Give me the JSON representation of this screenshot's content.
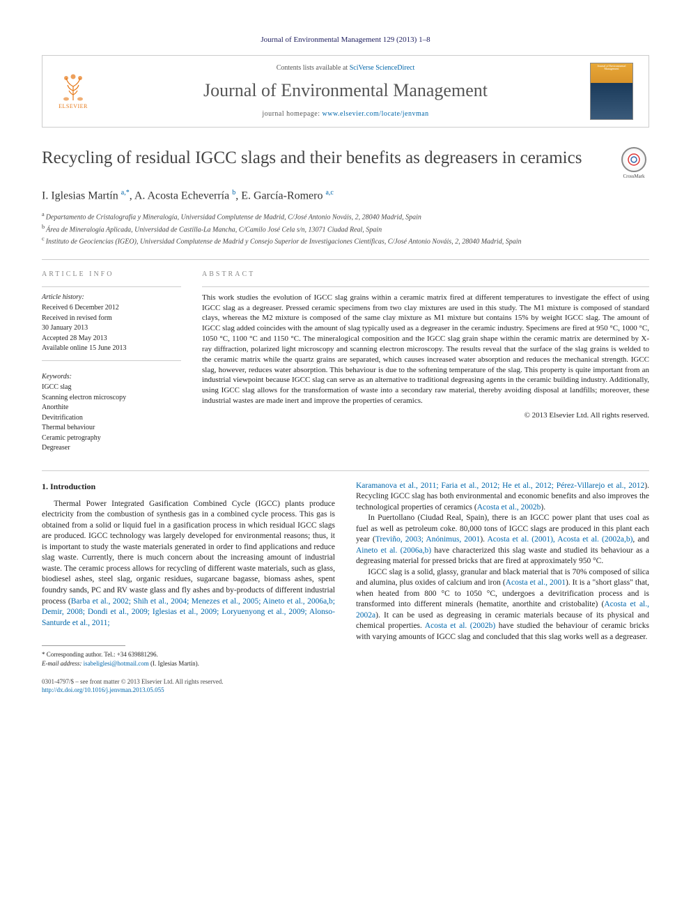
{
  "header_citation": "Journal of Environmental Management 129 (2013) 1–8",
  "banner": {
    "contents_prefix": "Contents lists available at ",
    "contents_link": "SciVerse ScienceDirect",
    "journal_name": "Journal of Environmental Management",
    "homepage_prefix": "journal homepage: ",
    "homepage_link": "www.elsevier.com/locate/jenvman",
    "publisher_label": "ELSEVIER",
    "cover_title": "Journal of Environmental Management"
  },
  "crossmark_label": "CrossMark",
  "title": "Recycling of residual IGCC slags and their benefits as degreasers in ceramics",
  "authors_html": "I. Iglesias Martín <sup>a,*</sup>, A. Acosta Echeverría <sup>b</sup>, E. García-Romero <sup>a,c</sup>",
  "affiliations": [
    "a Departamento de Cristalografía y Mineralogía, Universidad Complutense de Madrid, C/José Antonio Nováis, 2, 28040 Madrid, Spain",
    "b Área de Mineralogía Aplicada, Universidad de Castilla-La Mancha, C/Camilo José Cela s/n, 13071 Ciudad Real, Spain",
    "c Instituto de Geociencias (IGEO), Universidad Complutense de Madrid y Consejo Superior de Investigaciones Científicas, C/José Antonio Nováis, 2, 28040 Madrid, Spain"
  ],
  "article_info": {
    "heading": "ARTICLE INFO",
    "history_label": "Article history:",
    "history": [
      "Received 6 December 2012",
      "Received in revised form",
      "30 January 2013",
      "Accepted 28 May 2013",
      "Available online 15 June 2013"
    ],
    "keywords_label": "Keywords:",
    "keywords": [
      "IGCC slag",
      "Scanning electron microscopy",
      "Anorthite",
      "Devitrification",
      "Thermal behaviour",
      "Ceramic petrography",
      "Degreaser"
    ]
  },
  "abstract": {
    "heading": "ABSTRACT",
    "text": "This work studies the evolution of IGCC slag grains within a ceramic matrix fired at different temperatures to investigate the effect of using IGCC slag as a degreaser. Pressed ceramic specimens from two clay mixtures are used in this study. The M1 mixture is composed of standard clays, whereas the M2 mixture is composed of the same clay mixture as M1 mixture but contains 15% by weight IGCC slag. The amount of IGCC slag added coincides with the amount of slag typically used as a degreaser in the ceramic industry. Specimens are fired at 950 °C, 1000 °C, 1050 °C, 1100 °C and 1150 °C. The mineralogical composition and the IGCC slag grain shape within the ceramic matrix are determined by X-ray diffraction, polarized light microscopy and scanning electron microscopy. The results reveal that the surface of the slag grains is welded to the ceramic matrix while the quartz grains are separated, which causes increased water absorption and reduces the mechanical strength. IGCC slag, however, reduces water absorption. This behaviour is due to the softening temperature of the slag. This property is quite important from an industrial viewpoint because IGCC slag can serve as an alternative to traditional degreasing agents in the ceramic building industry. Additionally, using IGCC slag allows for the transformation of waste into a secondary raw material, thereby avoiding disposal at landfills; moreover, these industrial wastes are made inert and improve the properties of ceramics.",
    "copyright": "© 2013 Elsevier Ltd. All rights reserved."
  },
  "body": {
    "section_heading": "1.  Introduction",
    "col1_p1_a": "Thermal Power Integrated Gasification Combined Cycle (IGCC) plants produce electricity from the combustion of synthesis gas in a combined cycle process. This gas is obtained from a solid or liquid fuel in a gasification process in which residual IGCC slags are produced. IGCC technology was largely developed for environmental reasons; thus, it is important to study the waste materials generated in order to find applications and reduce slag waste. Currently, there is much concern about the increasing amount of industrial waste. The ceramic process allows for recycling of different waste materials, such as glass, biodiesel ashes, steel slag, organic residues, sugarcane bagasse, biomass ashes, spent foundry sands, PC and RV waste glass and fly ashes and by-products of different industrial process (",
    "col1_cite1": "Barba et al., 2002; Shih et al., 2004; Menezes et al., 2005; Aineto et al., 2006a,b; Demir, 2008; Dondi et al., 2009; Iglesias et al., 2009; Loryuenyong et al., 2009; Alonso-Santurde et al., 2011;",
    "col2_cite_cont": "Karamanova et al., 2011; Faria et al., 2012; He et al., 2012; Pérez-Villarejo et al., 2012",
    "col2_p1_a": "). Recycling IGCC slag has both environmental and economic benefits and also improves the technological properties of ceramics (",
    "col2_p1_cite2": "Acosta et al., 2002b",
    "col2_p1_b": ").",
    "col2_p2_a": "In Puertollano (Ciudad Real, Spain), there is an IGCC power plant that uses coal as fuel as well as petroleum coke. 80,000 tons of IGCC slags are produced in this plant each year (",
    "col2_p2_cite1": "Treviño, 2003; Anónimus, 2001",
    "col2_p2_b": "). ",
    "col2_p2_cite2": "Acosta et al. (2001), Acosta et al. (2002a,b)",
    "col2_p2_c": ", and ",
    "col2_p2_cite3": "Aineto et al. (2006a,b)",
    "col2_p2_d": " have characterized this slag waste and studied its behaviour as a degreasing material for pressed bricks that are fired at approximately 950 °C.",
    "col2_p3_a": "IGCC slag is a solid, glassy, granular and black material that is 70% composed of silica and alumina, plus oxides of calcium and iron (",
    "col2_p3_cite1": "Acosta et al., 2001",
    "col2_p3_b": "). It is a \"short glass\" that, when heated from 800 °C to 1050 °C, undergoes a devitrification process and is transformed into different minerals (hematite, anorthite and cristobalite) (",
    "col2_p3_cite2": "Acosta et al., 2002a",
    "col2_p3_c": "). It can be used as degreasing in ceramic materials because of its physical and chemical properties. ",
    "col2_p3_cite3": "Acosta et al. (2002b)",
    "col2_p3_d": " have studied the behaviour of ceramic bricks with varying amounts of IGCC slag and concluded that this slag works well as a degreaser."
  },
  "footnotes": {
    "corr": "* Corresponding author. Tel.: +34 639881296.",
    "email_label": "E-mail address: ",
    "email": "isabeliglesi@hotmail.com",
    "email_suffix": " (I. Iglesias Martín)."
  },
  "footer": {
    "line1": "0301-4797/$ – see front matter © 2013 Elsevier Ltd. All rights reserved.",
    "doi": "http://dx.doi.org/10.1016/j.jenvman.2013.05.055"
  },
  "colors": {
    "link": "#0066aa",
    "elsevier_orange": "#e67817",
    "heading_gray": "#888888",
    "text": "#222222",
    "rule": "#cccccc"
  }
}
